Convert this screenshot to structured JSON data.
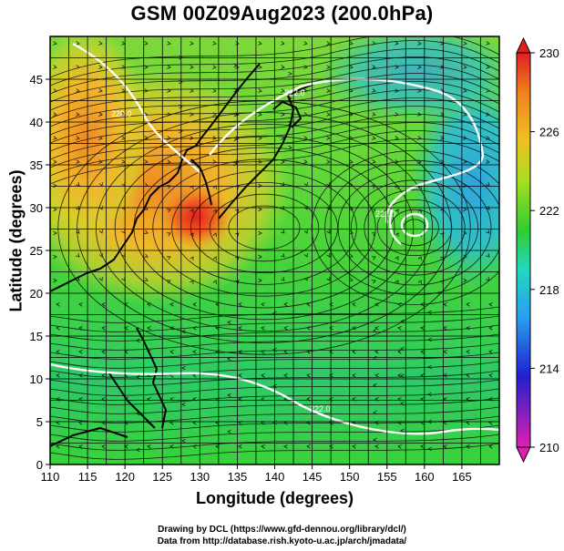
{
  "title": "GSM 00Z09Aug2023 (200.0hPa)",
  "axes": {
    "xlabel": "Longitude (degrees)",
    "ylabel": "Latitude  (degrees)",
    "xticks": [
      "110",
      "115",
      "120",
      "125",
      "130",
      "135",
      "140",
      "145",
      "150",
      "155",
      "160",
      "165"
    ],
    "yticks": [
      "0",
      "5",
      "10",
      "15",
      "20",
      "25",
      "30",
      "35",
      "40",
      "45"
    ],
    "xlim": [
      110,
      170
    ],
    "ylim": [
      0,
      50
    ]
  },
  "colorbar": {
    "ticks": [
      "210",
      "214",
      "218",
      "222",
      "226",
      "230"
    ],
    "range": [
      210,
      230
    ],
    "colors": [
      "#e020b0",
      "#2020d0",
      "#2a9ff0",
      "#20d8c0",
      "#30cc30",
      "#aadf20",
      "#f0c020",
      "#f08020",
      "#e02020"
    ]
  },
  "contour_labels": [
    "220.0",
    "222.0",
    "222.0",
    "222.0"
  ],
  "credits": {
    "line1": "Drawing by DCL (https://www.gfd-dennou.org/library/dcl/)",
    "line2": "Data from http://database.rish.kyoto-u.ac.jp/arch/jmadata/"
  }
}
